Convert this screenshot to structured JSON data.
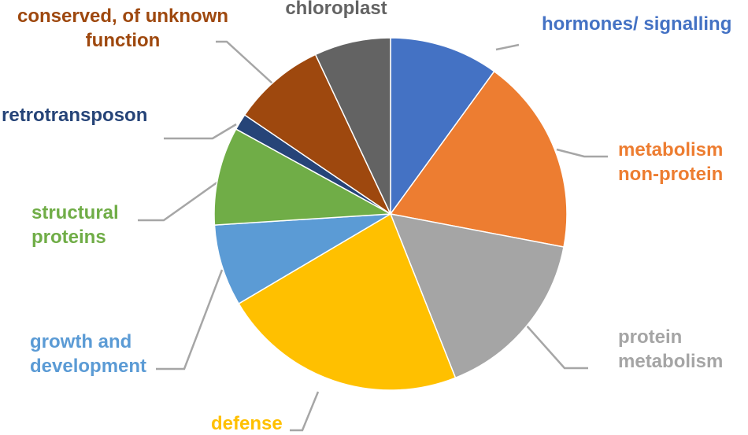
{
  "chart_data": {
    "type": "pie",
    "title": "",
    "slices": [
      {
        "label": [
          "hormones/ signalling"
        ],
        "value": 10.0,
        "color": "#4472c4"
      },
      {
        "label": [
          "metabolism",
          "non-protein"
        ],
        "value": 18.0,
        "color": "#ed7d31"
      },
      {
        "label": [
          "protein",
          "metabolism"
        ],
        "value": 16.0,
        "color": "#a5a5a5"
      },
      {
        "label": [
          "defense"
        ],
        "value": 22.5,
        "color": "#ffc000"
      },
      {
        "label": [
          "growth and",
          "development"
        ],
        "value": 7.5,
        "color": "#5b9bd5"
      },
      {
        "label": [
          "structural",
          "proteins"
        ],
        "value": 9.0,
        "color": "#70ad47"
      },
      {
        "label": [
          "retrotransposon"
        ],
        "value": 1.5,
        "color": "#264478"
      },
      {
        "label": [
          "conserved, of unknown",
          "function"
        ],
        "value": 8.5,
        "color": "#9e480e"
      },
      {
        "label": [
          "chloroplast"
        ],
        "value": 7.0,
        "color": "#636363"
      }
    ]
  }
}
